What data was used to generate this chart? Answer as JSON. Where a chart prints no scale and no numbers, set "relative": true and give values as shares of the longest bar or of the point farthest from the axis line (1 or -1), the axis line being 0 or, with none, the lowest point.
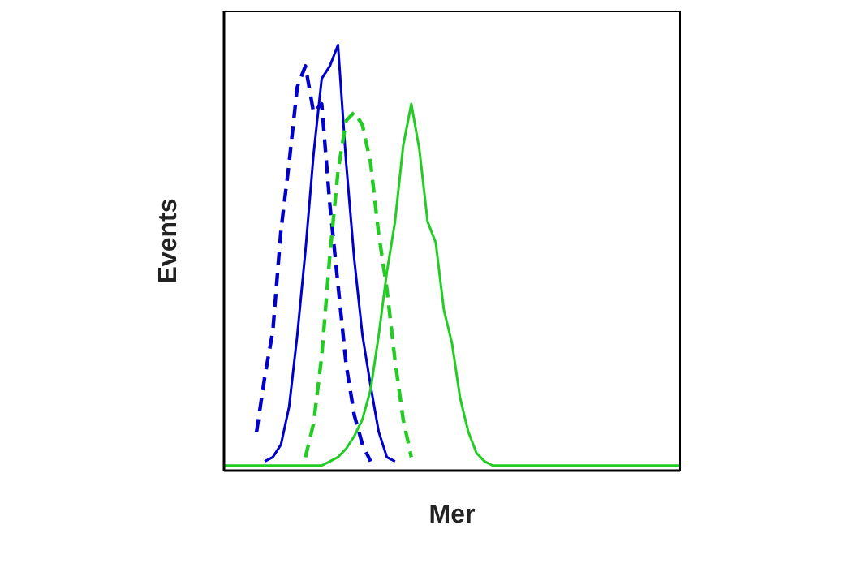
{
  "chart_data": {
    "type": "line",
    "relative": true,
    "xlabel": "Mer",
    "ylabel": "Events",
    "marker": "none",
    "categories": [
      null,
      null,
      null,
      null,
      null,
      null,
      null,
      null,
      null,
      null,
      null,
      null,
      null,
      null,
      null,
      null,
      null,
      null,
      null,
      null,
      null,
      null,
      null,
      null,
      null,
      null,
      null,
      null,
      null,
      null,
      null,
      null,
      null,
      null,
      null,
      null,
      null,
      null,
      null,
      null,
      null,
      null,
      null,
      null,
      null,
      null,
      null,
      null,
      null,
      null,
      null,
      null,
      null,
      null,
      null,
      null,
      null
    ],
    "series": [
      {
        "color": "#0000cc",
        "line_style": "dashed",
        "values": [
          null,
          null,
          null,
          null,
          0.08,
          0.21,
          0.32,
          0.56,
          0.72,
          0.9,
          0.95,
          0.84,
          0.86,
          0.62,
          0.43,
          0.24,
          0.12,
          0.05,
          0.01,
          null,
          null,
          null,
          null,
          null,
          null,
          null,
          null,
          null,
          null,
          null,
          null,
          null,
          null,
          null,
          null,
          null,
          null,
          null,
          null,
          null,
          null,
          null,
          null,
          null,
          null,
          null,
          null,
          null,
          null,
          null,
          null,
          null,
          null,
          null,
          null,
          null,
          null
        ]
      },
      {
        "color": "#0000cc",
        "line_style": "solid",
        "values": [
          null,
          null,
          null,
          null,
          null,
          0.01,
          0.02,
          0.05,
          0.14,
          0.31,
          0.51,
          0.74,
          0.92,
          0.95,
          1,
          0.72,
          0.49,
          0.31,
          0.19,
          0.08,
          0.02,
          0.01,
          null,
          null,
          null,
          null,
          null,
          null,
          null,
          null,
          null,
          null,
          null,
          null,
          null,
          null,
          null,
          null,
          null,
          null,
          null,
          null,
          null,
          null,
          null,
          null,
          null,
          null,
          null,
          null,
          null,
          null,
          null,
          null,
          null,
          null,
          null
        ]
      },
      {
        "color": "#22cc22",
        "line_style": "dashed",
        "values": [
          null,
          null,
          null,
          null,
          null,
          null,
          null,
          null,
          null,
          null,
          0.02,
          0.1,
          0.26,
          0.5,
          0.7,
          0.82,
          0.84,
          0.81,
          0.72,
          0.55,
          0.42,
          0.25,
          0.11,
          0.02,
          null,
          null,
          null,
          null,
          null,
          null,
          null,
          null,
          null,
          null,
          null,
          null,
          null,
          null,
          null,
          null,
          null,
          null,
          null,
          null,
          null,
          null,
          null,
          null,
          null,
          null,
          null,
          null,
          null,
          null,
          null,
          null,
          null
        ]
      },
      {
        "color": "#22cc22",
        "line_style": "solid",
        "values": [
          0,
          0,
          0,
          0,
          0,
          0,
          0,
          0,
          0,
          0,
          0,
          0,
          0,
          0.01,
          0.02,
          0.04,
          0.07,
          0.11,
          0.18,
          0.31,
          0.46,
          0.58,
          0.76,
          0.86,
          0.75,
          0.58,
          0.53,
          0.37,
          0.29,
          0.16,
          0.08,
          0.03,
          0.01,
          0,
          0,
          0,
          0,
          0,
          0,
          0,
          0,
          0,
          0,
          0,
          0,
          0,
          0,
          0,
          0,
          0,
          0,
          0,
          0,
          0,
          0,
          0,
          0
        ]
      }
    ]
  }
}
